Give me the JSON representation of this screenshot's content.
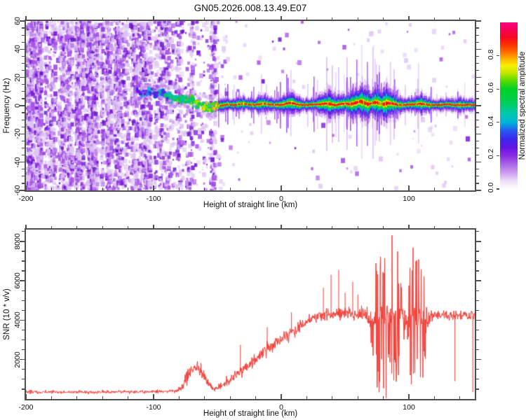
{
  "title": "GN05.2026.008.13.49.E07",
  "frame_color": "#4d4d4d",
  "chart_data": [
    {
      "type": "heatmap",
      "panel": "spectrogram",
      "xlabel": "Height of straight line (km)",
      "ylabel": "Frequency (Hz)",
      "xlim": [
        -200,
        151.6
      ],
      "ylim": [
        -60,
        60
      ],
      "xticks": [
        -200,
        -100,
        0,
        100
      ],
      "xminor_step": 20,
      "yticks": [
        -60,
        -40,
        -20,
        0,
        20,
        40,
        60
      ],
      "yminor_step": 5,
      "colorbar": {
        "label": "Normalized spectral amplitude",
        "ticks": [
          "0.0",
          "0.2",
          "0.4",
          "0.6",
          "0.8"
        ],
        "tick_values": [
          0,
          0.2,
          0.4,
          0.6,
          0.8
        ],
        "range": [
          0,
          1
        ],
        "stops": [
          [
            0,
            "#ffffff"
          ],
          [
            0.05,
            "#ecdcf8"
          ],
          [
            0.1,
            "#cc9af0"
          ],
          [
            0.15,
            "#a864e8"
          ],
          [
            0.2,
            "#8a2be2"
          ],
          [
            0.25,
            "#6414e0"
          ],
          [
            0.3,
            "#3c28f0"
          ],
          [
            0.35,
            "#2858f0"
          ],
          [
            0.4,
            "#00b4d8"
          ],
          [
            0.45,
            "#00c8b0"
          ],
          [
            0.5,
            "#00cc70"
          ],
          [
            0.55,
            "#00d040"
          ],
          [
            0.6,
            "#00d028"
          ],
          [
            0.65,
            "#58dc00"
          ],
          [
            0.7,
            "#c8e800"
          ],
          [
            0.74,
            "#f8f000"
          ],
          [
            0.78,
            "#ffb400"
          ],
          [
            0.82,
            "#ff7000"
          ],
          [
            0.86,
            "#ff3800"
          ],
          [
            0.91,
            "#f80820"
          ],
          [
            0.96,
            "#f4005c"
          ],
          [
            1,
            "#fb0080"
          ]
        ]
      },
      "noise": {
        "colors": [
          "#ddc2f2",
          "#a855e8",
          "#7718d8",
          "#5a0dbf"
        ],
        "density": [
          [
            -200,
            0.72
          ],
          [
            -150,
            0.72
          ],
          [
            -135,
            0.65
          ],
          [
            -125,
            0.52
          ],
          [
            -115,
            0.45
          ],
          [
            -105,
            0.42
          ],
          [
            -97,
            0.3
          ],
          [
            -92,
            0.4
          ],
          [
            -86,
            0.2
          ],
          [
            -80,
            0.28
          ],
          [
            -76,
            0.1
          ],
          [
            -71,
            0.28
          ],
          [
            -67,
            0.08
          ],
          [
            -62,
            0.12
          ],
          [
            -58,
            0.5
          ],
          [
            -53,
            0.45
          ],
          [
            -50,
            0.08
          ],
          [
            -46,
            0.04
          ],
          [
            -42,
            0.02
          ],
          [
            -30,
            0.012
          ],
          [
            -10,
            0.008
          ],
          [
            30,
            0.006
          ],
          [
            80,
            0.008
          ],
          [
            151,
            0.01
          ]
        ]
      },
      "trace": [
        [
          -115,
          10,
          0.22,
          4
        ],
        [
          -110,
          9,
          0.28,
          4
        ],
        [
          -105,
          10,
          0.3,
          4
        ],
        [
          -100,
          8,
          0.33,
          4
        ],
        [
          -96,
          9,
          0.35,
          4
        ],
        [
          -92,
          7,
          0.4,
          4.5
        ],
        [
          -88,
          6,
          0.45,
          4.5
        ],
        [
          -84,
          6,
          0.5,
          5
        ],
        [
          -80,
          5,
          0.5,
          5
        ],
        [
          -76,
          4,
          0.55,
          5
        ],
        [
          -72,
          3,
          0.55,
          5
        ],
        [
          -68,
          2,
          0.62,
          5
        ],
        [
          -64,
          0,
          0.62,
          5
        ],
        [
          -60,
          -1,
          0.65,
          5
        ],
        [
          -57,
          -2,
          0.6,
          4.5
        ],
        [
          -54,
          -1,
          0.7,
          4
        ],
        [
          -51,
          0,
          0.78,
          3
        ],
        [
          -48,
          0,
          0.85,
          2.5
        ],
        [
          -45,
          0.5,
          0.85,
          2.5
        ],
        [
          -42,
          1,
          0.88,
          2.5
        ],
        [
          -38,
          0.5,
          0.88,
          2.5
        ],
        [
          -34,
          1,
          0.88,
          3
        ],
        [
          -30,
          1.5,
          0.88,
          3
        ],
        [
          -26,
          1,
          0.9,
          2.5
        ],
        [
          -22,
          0.5,
          0.92,
          2.5
        ],
        [
          -18,
          1,
          0.92,
          3.5
        ],
        [
          -14,
          1.5,
          0.9,
          3.5
        ],
        [
          -10,
          1,
          0.92,
          3
        ],
        [
          -6,
          0.5,
          0.93,
          2.5
        ],
        [
          -2,
          0.5,
          0.95,
          3
        ],
        [
          2,
          1,
          0.95,
          4
        ],
        [
          6,
          2,
          0.92,
          5
        ],
        [
          10,
          1.5,
          0.92,
          4
        ],
        [
          14,
          0.5,
          0.95,
          3
        ],
        [
          18,
          0.5,
          0.95,
          2.5
        ],
        [
          22,
          0.5,
          0.95,
          2.5
        ],
        [
          26,
          1,
          0.95,
          3
        ],
        [
          30,
          1,
          0.92,
          4
        ],
        [
          34,
          1.5,
          0.9,
          5
        ],
        [
          38,
          1,
          0.9,
          5.5
        ],
        [
          42,
          0.5,
          0.92,
          5
        ],
        [
          46,
          1,
          0.9,
          5
        ],
        [
          50,
          1.5,
          0.9,
          4
        ],
        [
          54,
          1,
          0.9,
          5
        ],
        [
          58,
          2,
          0.88,
          6.5
        ],
        [
          62,
          3,
          0.86,
          7
        ],
        [
          65,
          2,
          0.86,
          7.5
        ],
        [
          68,
          1,
          0.86,
          7
        ],
        [
          71,
          2,
          0.88,
          6
        ],
        [
          74,
          2.5,
          0.86,
          6.5
        ],
        [
          77,
          1.5,
          0.86,
          7
        ],
        [
          80,
          1,
          0.86,
          7.5
        ],
        [
          83,
          2,
          0.86,
          7
        ],
        [
          86,
          1.5,
          0.88,
          6
        ],
        [
          89,
          1,
          0.9,
          5
        ],
        [
          92,
          0.5,
          0.92,
          4
        ],
        [
          96,
          0.5,
          0.92,
          3
        ],
        [
          100,
          1,
          0.92,
          3
        ],
        [
          104,
          1,
          0.9,
          4
        ],
        [
          108,
          1.5,
          0.9,
          4.5
        ],
        [
          112,
          1,
          0.9,
          4
        ],
        [
          116,
          0.5,
          0.92,
          3
        ],
        [
          120,
          0.5,
          0.95,
          2.5
        ],
        [
          125,
          0.5,
          0.95,
          2.5
        ],
        [
          130,
          1,
          0.95,
          2.5
        ],
        [
          135,
          0.5,
          0.95,
          2.5
        ],
        [
          140,
          0.5,
          0.95,
          3
        ],
        [
          145,
          0.5,
          0.95,
          2.5
        ],
        [
          151,
          0.5,
          0.95,
          2.5
        ]
      ]
    },
    {
      "type": "line",
      "panel": "snr",
      "xlabel": "Height of straight line (km)",
      "ylabel": "SNR (10 * v/v)",
      "xlim": [
        -200,
        151.6
      ],
      "ylim": [
        0,
        8600
      ],
      "xticks": [
        -200,
        -100,
        0,
        100
      ],
      "xminor_step": 20,
      "yticks": [
        2000,
        4000,
        6000,
        8000
      ],
      "yminor_step": 500,
      "line_color": "#f23b34",
      "envelope": [
        [
          -200,
          350,
          110
        ],
        [
          -150,
          350,
          110
        ],
        [
          -120,
          360,
          110
        ],
        [
          -100,
          370,
          120
        ],
        [
          -90,
          380,
          130
        ],
        [
          -82,
          420,
          160
        ],
        [
          -77,
          650,
          300
        ],
        [
          -73,
          1250,
          450
        ],
        [
          -69,
          1550,
          500
        ],
        [
          -65,
          1500,
          500
        ],
        [
          -61,
          1150,
          450
        ],
        [
          -57,
          750,
          300
        ],
        [
          -53,
          480,
          160
        ],
        [
          -49,
          560,
          260
        ],
        [
          -45,
          750,
          330
        ],
        [
          -41,
          950,
          380
        ],
        [
          -37,
          1150,
          420
        ],
        [
          -33,
          1350,
          430
        ],
        [
          -29,
          1550,
          430
        ],
        [
          -25,
          1750,
          420
        ],
        [
          -21,
          1980,
          440
        ],
        [
          -17,
          2180,
          420
        ],
        [
          -13,
          2420,
          440
        ],
        [
          -9,
          2600,
          430
        ],
        [
          -5,
          2780,
          420
        ],
        [
          -1,
          2980,
          420
        ],
        [
          3,
          3150,
          440
        ],
        [
          7,
          3320,
          430
        ],
        [
          11,
          3480,
          410
        ],
        [
          15,
          3680,
          380
        ],
        [
          19,
          3860,
          360
        ],
        [
          23,
          4020,
          330
        ],
        [
          27,
          4150,
          360
        ],
        [
          31,
          4220,
          420
        ],
        [
          35,
          4260,
          480
        ],
        [
          39,
          4300,
          460
        ],
        [
          43,
          4300,
          480
        ],
        [
          47,
          4330,
          470
        ],
        [
          51,
          4350,
          420
        ],
        [
          55,
          4320,
          420
        ],
        [
          59,
          4300,
          380
        ],
        [
          63,
          4300,
          450
        ],
        [
          67,
          4270,
          700
        ],
        [
          70,
          4250,
          1500
        ],
        [
          73,
          4200,
          3000
        ],
        [
          76,
          4200,
          4200
        ],
        [
          80,
          4200,
          4350
        ],
        [
          84,
          4300,
          4350
        ],
        [
          88,
          4250,
          4250
        ],
        [
          91,
          4200,
          3400
        ],
        [
          94,
          4150,
          1800
        ],
        [
          97,
          4100,
          900
        ],
        [
          99,
          4100,
          1600
        ],
        [
          102,
          4200,
          3800
        ],
        [
          105,
          4200,
          4300
        ],
        [
          108,
          4150,
          4250
        ],
        [
          111,
          4200,
          3400
        ],
        [
          114,
          4200,
          1200
        ],
        [
          117,
          4220,
          500
        ],
        [
          122,
          4250,
          420
        ],
        [
          128,
          4200,
          420
        ],
        [
          134,
          4230,
          430
        ],
        [
          140,
          4260,
          420
        ],
        [
          146,
          4220,
          420
        ],
        [
          151,
          4230,
          430
        ]
      ],
      "spikes": [
        [
          -32,
          2750
        ],
        [
          -11,
          3650
        ],
        [
          8,
          4400
        ],
        [
          33,
          5650
        ],
        [
          39,
          6300
        ],
        [
          45,
          6550
        ],
        [
          50,
          5400
        ],
        [
          56,
          5950
        ],
        [
          60,
          5300
        ],
        [
          136,
          900
        ],
        [
          150,
          350
        ]
      ]
    }
  ]
}
